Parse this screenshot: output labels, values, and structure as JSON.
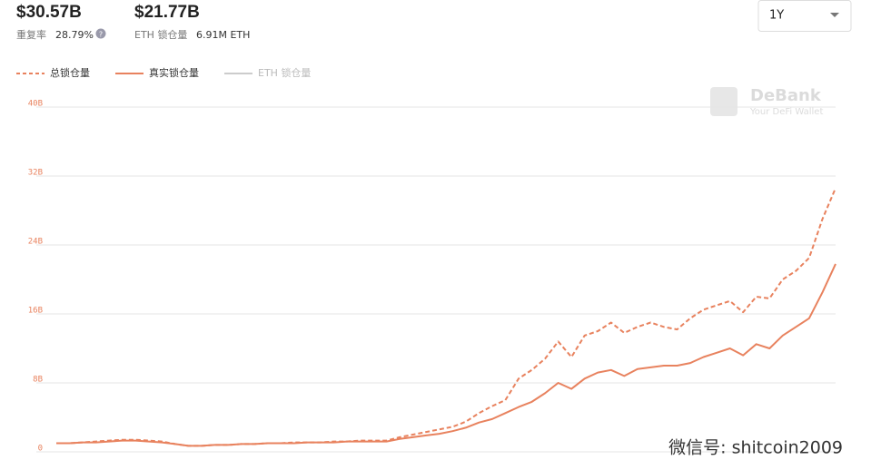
{
  "summary": {
    "total_tvl": "$30.57B",
    "dup_rate_label": "重复率",
    "dup_rate": "28.79%",
    "real_tvl": "$21.77B",
    "eth_locked_label": "ETH 锁仓量",
    "eth_locked": "6.91M ETH",
    "range": "1Y"
  },
  "watermark": {
    "brand": "DeBank",
    "tagline": "Your DeFi Wallet",
    "wechat": "微信号: shitcoin2009"
  },
  "chart_data": {
    "type": "line",
    "categories": [
      null,
      null,
      null,
      null,
      null,
      null,
      null,
      null,
      null,
      null,
      null,
      null,
      null,
      null,
      null,
      null,
      null,
      null,
      null,
      null,
      null,
      null,
      null,
      null,
      null,
      null,
      null,
      null,
      null,
      null,
      null,
      null,
      null,
      null,
      null,
      null,
      null,
      null,
      null,
      null,
      null,
      null,
      null,
      null,
      null,
      null,
      null,
      null,
      null,
      null,
      null,
      null,
      null,
      null,
      null,
      null,
      null,
      null,
      null,
      null
    ],
    "ylim": [
      0,
      40
    ],
    "yticks": [
      0,
      {
        "value": 8,
        "label": "8B"
      },
      {
        "value": 16,
        "label": "16B"
      },
      {
        "value": 24,
        "label": "24B"
      },
      {
        "value": 32,
        "label": "32B"
      },
      {
        "value": 40,
        "label": "40B"
      }
    ],
    "grid": true,
    "series": [
      {
        "name": "总锁仓量",
        "color": "#e8825e",
        "dashed": true,
        "values": [
          1.0,
          1.0,
          1.1,
          1.2,
          1.3,
          1.4,
          1.4,
          1.3,
          1.2,
          0.9,
          0.7,
          0.7,
          0.8,
          0.8,
          0.9,
          0.9,
          1.0,
          1.0,
          1.1,
          1.1,
          1.1,
          1.2,
          1.2,
          1.3,
          1.3,
          1.3,
          1.7,
          2.0,
          2.3,
          2.6,
          2.9,
          3.5,
          4.5,
          5.3,
          6.0,
          8.5,
          9.5,
          10.8,
          12.8,
          11.0,
          13.5,
          14.0,
          15.0,
          13.8,
          14.5,
          15.0,
          14.5,
          14.2,
          15.5,
          16.5,
          17.0,
          17.5,
          16.2,
          18.0,
          17.8,
          20.0,
          21.0,
          22.5,
          27.0,
          30.6
        ]
      },
      {
        "name": "真实锁仓量",
        "color": "#e8825e",
        "dashed": false,
        "values": [
          1.0,
          1.0,
          1.1,
          1.1,
          1.2,
          1.3,
          1.3,
          1.2,
          1.1,
          0.9,
          0.7,
          0.7,
          0.8,
          0.8,
          0.9,
          0.9,
          1.0,
          1.0,
          1.0,
          1.1,
          1.1,
          1.1,
          1.2,
          1.2,
          1.2,
          1.2,
          1.5,
          1.7,
          1.9,
          2.1,
          2.4,
          2.8,
          3.4,
          3.8,
          4.5,
          5.2,
          5.8,
          6.8,
          8.0,
          7.3,
          8.5,
          9.2,
          9.5,
          8.8,
          9.6,
          9.8,
          10.0,
          10.0,
          10.3,
          11.0,
          11.5,
          12.0,
          11.2,
          12.5,
          12.0,
          13.5,
          14.5,
          15.5,
          18.5,
          21.8
        ]
      },
      {
        "name": "ETH 锁仓量",
        "color": "#cccccc",
        "dashed": false,
        "values": [
          null,
          null,
          null,
          null,
          null,
          null,
          null,
          null,
          null,
          null,
          null,
          null,
          null,
          null,
          null,
          null,
          null,
          null,
          null,
          null,
          null,
          null,
          null,
          null,
          null,
          null,
          null,
          null,
          null,
          null,
          null,
          null,
          null,
          null,
          null,
          null,
          null,
          null,
          null,
          null,
          null,
          null,
          null,
          null,
          null,
          null,
          null,
          null,
          null,
          null,
          null,
          null,
          null,
          null,
          null,
          null,
          null,
          null,
          null,
          null
        ]
      }
    ]
  }
}
